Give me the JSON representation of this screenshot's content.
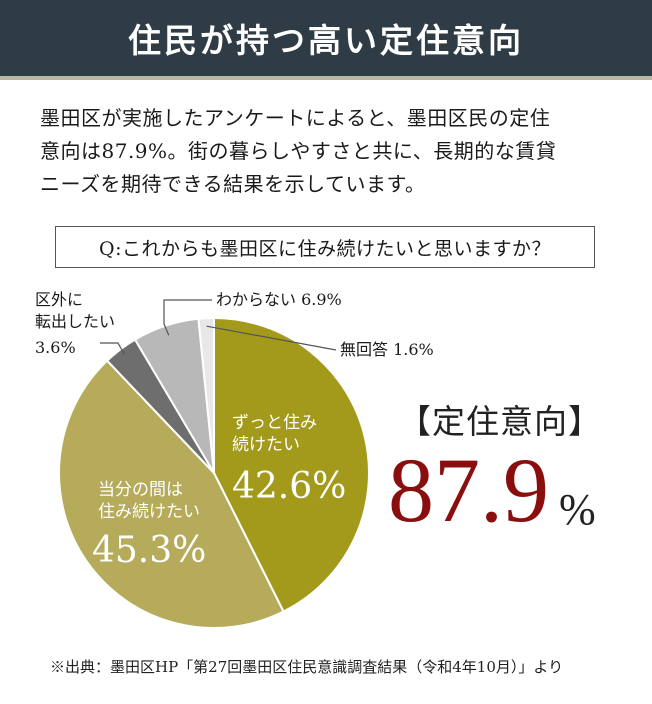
{
  "header": {
    "title": "住民が持つ高い定住意向"
  },
  "intro": {
    "lines": [
      "墨田区が実施したアンケートによると、墨田区民の定住",
      "意向は87.9%。街の暮らしやすさと共に、長期的な賃貸",
      "ニーズを期待できる結果を示しています。"
    ]
  },
  "question": "Q:これからも墨田区に住み続けたいと思いますか？",
  "result": {
    "label": "【定住意向】",
    "value": "87.9",
    "unit": "%"
  },
  "source": "※出典：墨田区HP「第27回墨田区住民意識調査結果（令和4年10月）」より",
  "colors": {
    "header_bg": "#2f3c45",
    "accent_red": "#8b0e0e",
    "slice_zutto": "#a39a1c",
    "slice_touban": "#b5ab5b",
    "slice_kugai": "#6e6e6e",
    "slice_wakaranai": "#b8b8b8",
    "slice_mukaito": "#e8e8e8"
  },
  "chart_data": {
    "type": "pie",
    "slices": [
      {
        "key": "zutto",
        "label_lines": [
          "ずっと住み",
          "続けたい"
        ],
        "value": 42.6,
        "value_text": "42.6%",
        "label_inside": true
      },
      {
        "key": "touban",
        "label_lines": [
          "当分の間は",
          "住み続けたい"
        ],
        "value": 45.3,
        "value_text": "45.3%",
        "label_inside": true
      },
      {
        "key": "kugai",
        "label_lines": [
          "区外に",
          "転出したい"
        ],
        "value": 3.6,
        "value_text": "3.6%",
        "label_inside": false
      },
      {
        "key": "wakaranai",
        "label_lines": [
          "わからない"
        ],
        "value": 6.9,
        "value_text": "6.9%",
        "label_inside": false
      },
      {
        "key": "mukaito",
        "label_lines": [
          "無回答"
        ],
        "value": 1.6,
        "value_text": "1.6%",
        "label_inside": false
      }
    ]
  }
}
